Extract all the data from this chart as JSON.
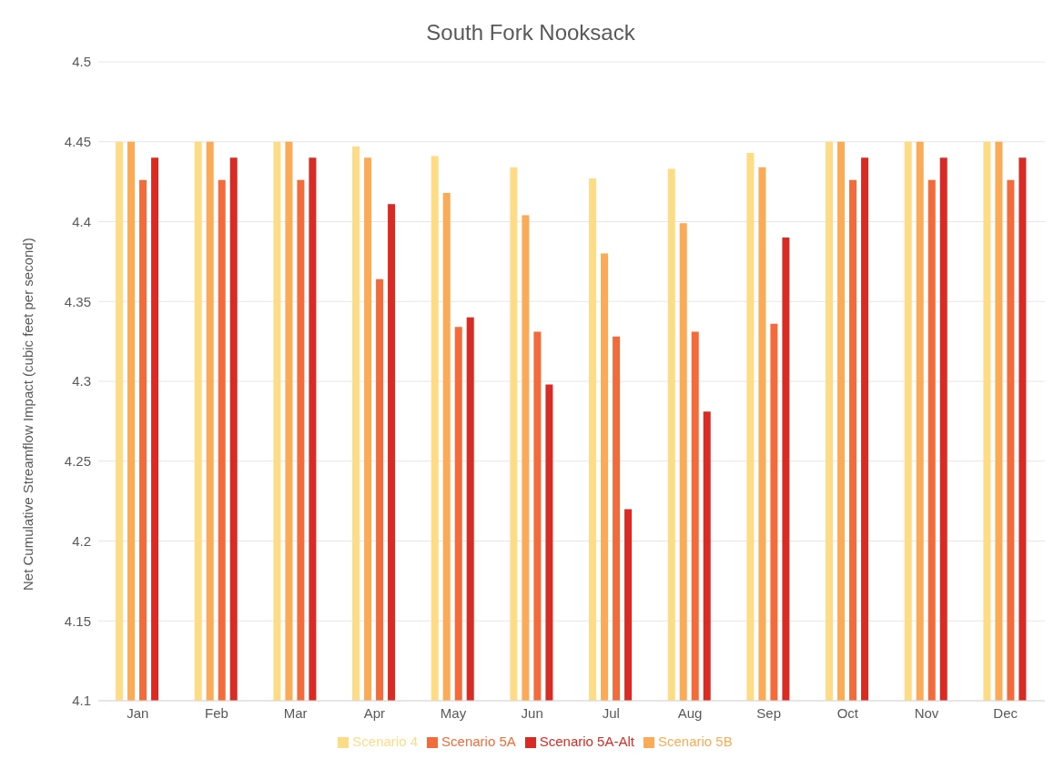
{
  "chart_data": {
    "type": "bar",
    "title": "South Fork Nooksack",
    "ylabel": "Net Cumulative Streamflow Impact (cubic feet per second)",
    "categories": [
      "Jan",
      "Feb",
      "Mar",
      "Apr",
      "May",
      "Jun",
      "Jul",
      "Aug",
      "Sep",
      "Oct",
      "Nov",
      "Dec"
    ],
    "series": [
      {
        "name": "Scenario 4",
        "color": "#fddc85",
        "values": [
          4.45,
          4.45,
          4.45,
          4.447,
          4.441,
          4.434,
          4.427,
          4.433,
          4.443,
          4.45,
          4.45,
          4.45
        ]
      },
      {
        "name": "Scenario 5B",
        "color": "#fbaa55",
        "values": [
          4.45,
          4.45,
          4.45,
          4.44,
          4.418,
          4.404,
          4.38,
          4.399,
          4.434,
          4.45,
          4.45,
          4.45
        ]
      },
      {
        "name": "Scenario 5A",
        "color": "#f36b3a",
        "values": [
          4.426,
          4.426,
          4.426,
          4.364,
          4.334,
          4.331,
          4.328,
          4.331,
          4.336,
          4.426,
          4.426,
          4.426
        ]
      },
      {
        "name": "Scenario 5A-Alt",
        "color": "#d92b23",
        "values": [
          4.44,
          4.44,
          4.44,
          4.411,
          4.34,
          4.298,
          4.22,
          4.281,
          4.39,
          4.44,
          4.44,
          4.44
        ]
      }
    ],
    "ylim": [
      4.1,
      4.5
    ],
    "yticks": [
      4.1,
      4.15,
      4.2,
      4.25,
      4.3,
      4.35,
      4.4,
      4.45,
      4.5
    ],
    "grid": "y",
    "legend": "bottom"
  }
}
